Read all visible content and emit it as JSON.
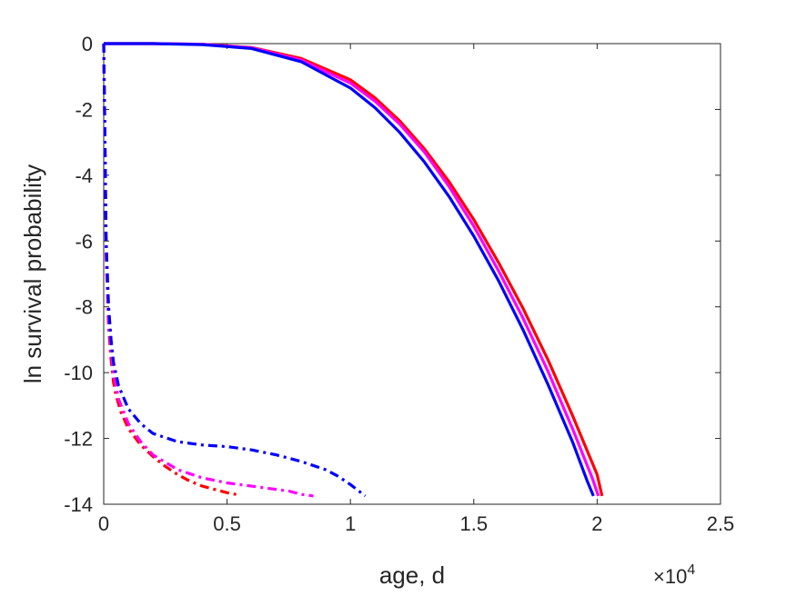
{
  "chart_data": {
    "type": "line",
    "title": "",
    "xlabel": "age, d",
    "ylabel": "ln survival probability",
    "x_exponent_label": "×10",
    "x_exponent_power": "4",
    "xlim": [
      0,
      25000
    ],
    "ylim": [
      -14,
      0
    ],
    "xticks": [
      0,
      5000,
      10000,
      15000,
      20000,
      25000
    ],
    "xtick_labels": [
      "0",
      "0.5",
      "1",
      "1.5",
      "2",
      "2.5"
    ],
    "yticks": [
      0,
      -2,
      -4,
      -6,
      -8,
      -10,
      -12,
      -14
    ],
    "ytick_labels": [
      "0",
      "-2",
      "-4",
      "-6",
      "-8",
      "-10",
      "-12",
      "-14"
    ],
    "grid": false,
    "legend": "none",
    "series": [
      {
        "color": "#ff0000",
        "style": "solid",
        "x": [
          0,
          2000,
          4000,
          6000,
          8000,
          10000,
          11000,
          12000,
          13000,
          14000,
          15000,
          16000,
          17000,
          18000,
          19000,
          20000,
          20200
        ],
        "y": [
          0,
          0,
          -0.02,
          -0.12,
          -0.45,
          -1.1,
          -1.65,
          -2.35,
          -3.2,
          -4.2,
          -5.35,
          -6.65,
          -8.05,
          -9.6,
          -11.3,
          -13.1,
          -13.75
        ]
      },
      {
        "color": "#ff00ff",
        "style": "solid",
        "x": [
          0,
          2000,
          4000,
          6000,
          8000,
          10000,
          11000,
          12000,
          13000,
          14000,
          15000,
          16000,
          17000,
          18000,
          19000,
          19800,
          20050
        ],
        "y": [
          0,
          0,
          -0.02,
          -0.13,
          -0.5,
          -1.2,
          -1.75,
          -2.45,
          -3.3,
          -4.35,
          -5.55,
          -6.9,
          -8.35,
          -9.95,
          -11.7,
          -13.2,
          -13.75
        ]
      },
      {
        "color": "#0000ff",
        "style": "solid",
        "x": [
          0,
          2000,
          4000,
          6000,
          8000,
          10000,
          11000,
          12000,
          13000,
          14000,
          15000,
          16000,
          17000,
          18000,
          19000,
          19600,
          19850
        ],
        "y": [
          0,
          0,
          -0.03,
          -0.15,
          -0.55,
          -1.35,
          -1.95,
          -2.7,
          -3.6,
          -4.65,
          -5.85,
          -7.2,
          -8.7,
          -10.35,
          -12.1,
          -13.3,
          -13.75
        ]
      },
      {
        "color": "#ff0000",
        "style": "dashdot",
        "x": [
          0,
          50,
          100,
          200,
          300,
          400,
          500,
          700,
          1000,
          1500,
          2000,
          2500,
          3000,
          3500,
          4000,
          4500,
          5000,
          5500
        ],
        "y": [
          0,
          -3.0,
          -6.5,
          -8.6,
          -9.6,
          -10.3,
          -10.7,
          -11.2,
          -11.7,
          -12.2,
          -12.55,
          -12.85,
          -13.1,
          -13.3,
          -13.45,
          -13.55,
          -13.65,
          -13.72
        ]
      },
      {
        "color": "#ff00ff",
        "style": "dashdot",
        "x": [
          0,
          50,
          100,
          200,
          300,
          400,
          600,
          1000,
          1500,
          2000,
          3000,
          4000,
          5000,
          6000,
          7000,
          7500,
          8000,
          8500
        ],
        "y": [
          0,
          -3.0,
          -6.3,
          -8.3,
          -9.3,
          -10.0,
          -10.8,
          -11.55,
          -12.1,
          -12.5,
          -12.95,
          -13.2,
          -13.35,
          -13.45,
          -13.55,
          -13.6,
          -13.7,
          -13.75
        ]
      },
      {
        "color": "#0000ff",
        "style": "dashdot",
        "x": [
          0,
          50,
          100,
          200,
          300,
          400,
          600,
          1000,
          1500,
          2000,
          3000,
          4000,
          5000,
          6000,
          7000,
          8000,
          9000,
          9500,
          10000,
          10600
        ],
        "y": [
          0,
          -3.0,
          -6.0,
          -8.0,
          -9.0,
          -9.7,
          -10.4,
          -11.1,
          -11.55,
          -11.85,
          -12.1,
          -12.2,
          -12.25,
          -12.35,
          -12.5,
          -12.7,
          -12.95,
          -13.15,
          -13.4,
          -13.75
        ]
      }
    ]
  }
}
